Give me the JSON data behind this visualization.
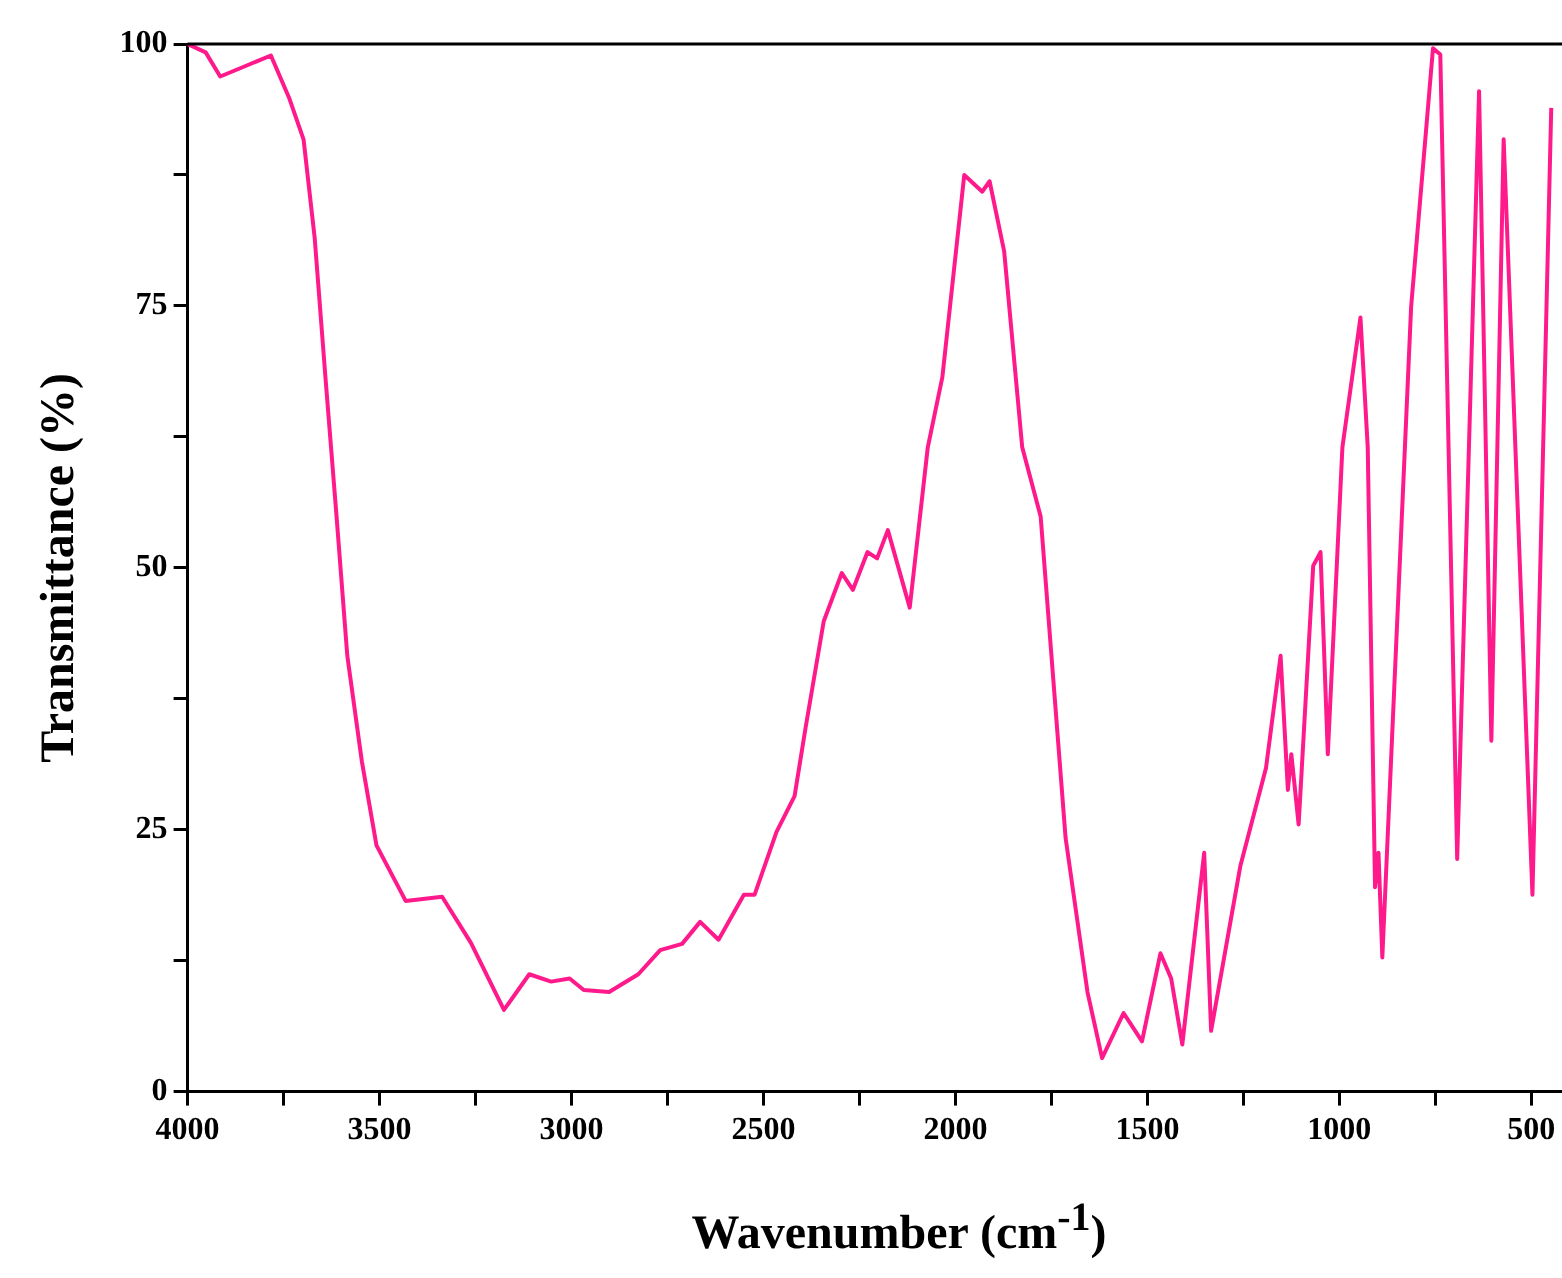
{
  "chart_data": {
    "type": "line",
    "xlabel": "Wavenumber (cm$^{-1}$)",
    "ylabel": "Transmittance (%)",
    "xlim": [
      4000,
      420
    ],
    "ylim": [
      0,
      100
    ],
    "xticks": [
      4000,
      {
        "value": 3750,
        "label": null
      },
      3500,
      {
        "value": 3250,
        "label": null
      },
      3000,
      {
        "value": 2750,
        "label": null
      },
      2500,
      {
        "value": 2250,
        "label": null
      },
      2000,
      {
        "value": 1750,
        "label": null
      },
      1500,
      {
        "value": 1250,
        "label": null
      },
      1000,
      {
        "value": 750,
        "label": null
      },
      500
    ],
    "yticks": [
      0,
      {
        "value": 12.5,
        "label": null
      },
      25,
      {
        "value": 37.5,
        "label": null
      },
      50,
      {
        "value": 62.5,
        "label": null
      },
      75,
      {
        "value": 87.5,
        "label": null
      },
      100
    ],
    "legend": false,
    "marker": "none",
    "line_style": "solid",
    "series": [
      {
        "color": "#ff1a8c",
        "x": [
          4000,
          3953,
          3915,
          3849,
          3783,
          3736,
          3698,
          3669,
          3641,
          3612,
          3584,
          3546,
          3508,
          3432,
          3337,
          3262,
          3176,
          3110,
          3053,
          3005,
          2968,
          2902,
          2826,
          2769,
          2712,
          2665,
          2617,
          2551,
          2523,
          2466,
          2419,
          2390,
          2343,
          2296,
          2267,
          2229,
          2204,
          2176,
          2119,
          2072,
          2034,
          1977,
          1930,
          1911,
          1873,
          1826,
          1778,
          1713,
          1656,
          1618,
          1562,
          1514,
          1466,
          1438,
          1409,
          1352,
          1334,
          1258,
          1191,
          1153,
          1134,
          1125,
          1106,
          1068,
          1049,
          1030,
          992,
          945,
          926,
          907,
          898,
          888,
          813,
          756,
          737,
          693,
          636,
          604,
          572,
          497,
          448
        ],
        "values": [
          100,
          99.2,
          96.9,
          97.9,
          98.9,
          94.9,
          90.9,
          81.5,
          68.2,
          54.9,
          41.6,
          31.5,
          23.5,
          18.2,
          18.6,
          14.2,
          7.8,
          11.2,
          10.5,
          10.8,
          9.7,
          9.5,
          11.2,
          13.5,
          14.1,
          16.2,
          14.5,
          18.8,
          18.8,
          24.8,
          28.2,
          34.8,
          44.9,
          49.5,
          47.9,
          51.5,
          50.9,
          53.6,
          46.2,
          61.5,
          68.2,
          87.5,
          85.9,
          86.9,
          80.2,
          61.5,
          54.9,
          24.2,
          9.5,
          3.2,
          7.5,
          4.8,
          13.2,
          10.8,
          4.5,
          22.8,
          5.8,
          21.5,
          30.9,
          41.6,
          28.8,
          32.2,
          25.5,
          50.2,
          51.5,
          32.2,
          61.5,
          73.9,
          61.5,
          19.5,
          22.8,
          12.8,
          74.9,
          99.6,
          99,
          22.2,
          95.5,
          33.5,
          90.9,
          18.8,
          93.9
        ]
      }
    ]
  }
}
